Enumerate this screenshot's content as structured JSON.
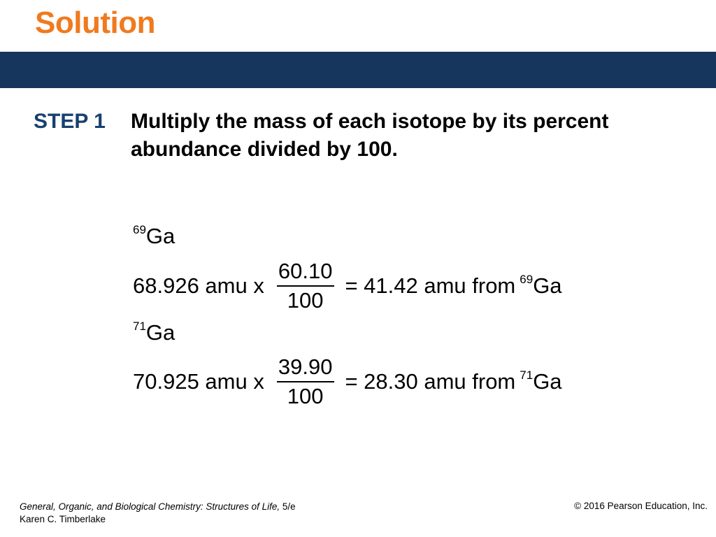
{
  "slide": {
    "title": "Solution",
    "step_label": "STEP 1",
    "step_text": "Multiply the mass of each isotope by its percent abundance divided by 100."
  },
  "isotopes": [
    {
      "mass_number": "69",
      "symbol": "Ga",
      "mass": "68.926 amu x",
      "numerator": "60.10",
      "denominator": "100",
      "result": "= 41.42 amu from",
      "from_mass_number": "69",
      "from_symbol": "Ga"
    },
    {
      "mass_number": "71",
      "symbol": "Ga",
      "mass": "70.925 amu x",
      "numerator": "39.90",
      "denominator": "100",
      "result": "= 28.30 amu from",
      "from_mass_number": "71",
      "from_symbol": "Ga"
    }
  ],
  "footer": {
    "book_title": "General, Organic, and Biological Chemistry: Structures of Life,",
    "edition": " 5/e",
    "author": "Karen C. Timberlake",
    "copyright": "© 2016 Pearson Education, Inc."
  },
  "colors": {
    "title": "#f07a1e",
    "band": "#17365d",
    "step_label": "#17406f"
  }
}
